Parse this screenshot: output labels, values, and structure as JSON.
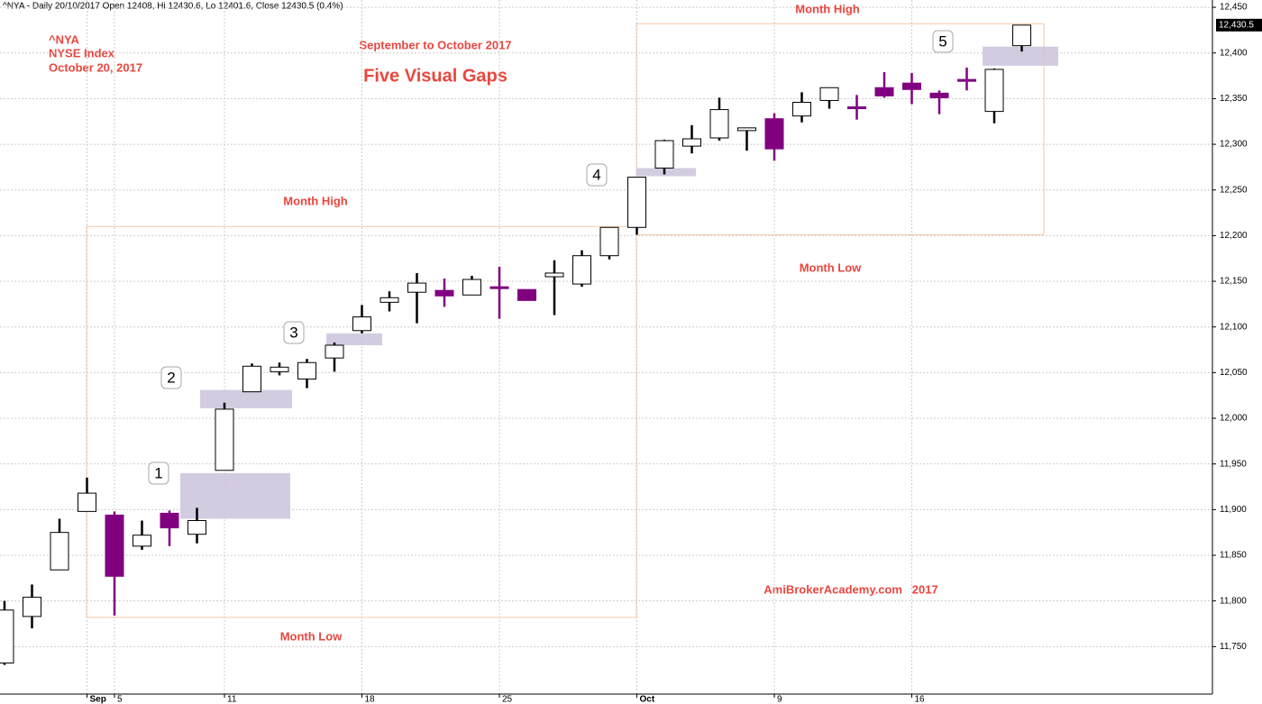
{
  "chart_data": {
    "type": "candlestick",
    "header": "^NYA - Daily 20/10/2017 Open 12408, Hi 12430.6, Lo 12401.6, Close 12430.5 (0.4%)",
    "symbol": "^NYA",
    "index_name": "NYSE Index",
    "date": "October 20, 2017",
    "subtitle": "September to October 2017",
    "title": "Five Visual Gaps",
    "watermark": "AmiBrokerAcademy.com   2017",
    "last_value_label": "12,430.5",
    "categories": [
      null,
      null,
      null,
      "Sep",
      "5",
      null,
      null,
      null,
      "11",
      null,
      null,
      null,
      null,
      "18",
      null,
      null,
      null,
      null,
      "25",
      null,
      null,
      null,
      null,
      "Oct",
      null,
      null,
      null,
      null,
      "9",
      null,
      null,
      null,
      null,
      "16",
      null,
      null,
      null,
      null
    ],
    "open": [
      11732,
      11783,
      11834,
      11898,
      11894,
      11860,
      11896,
      11873,
      11943,
      12029,
      12051,
      12043,
      12066,
      12096,
      12127,
      12138,
      12140,
      12135,
      12144,
      12141,
      12155,
      12147,
      12178,
      12209,
      12274,
      12298,
      12307,
      12315,
      12328,
      12331,
      12348,
      12341,
      12362,
      12367,
      12356,
      12371,
      12336,
      12408
    ],
    "high": [
      11800,
      11818,
      11890,
      11935,
      11898,
      11888,
      11899,
      11902,
      12017,
      12060,
      12061,
      12065,
      12083,
      12124,
      12139,
      12159,
      12153,
      12156,
      12166,
      12141,
      12173,
      12184,
      12209,
      12264,
      12305,
      12321,
      12351,
      12318,
      12334,
      12357,
      12362,
      12354,
      12379,
      12378,
      12359,
      12384,
      12383,
      12430.6
    ],
    "low": [
      11730,
      11770,
      11834,
      11898,
      11784,
      11856,
      11860,
      11863,
      11943,
      12029,
      12047,
      12033,
      12051,
      12093,
      12117,
      12104,
      12122,
      12135,
      12109,
      12129,
      12113,
      12144,
      12174,
      12201,
      12267,
      12290,
      12304,
      12293,
      12282,
      12324,
      12339,
      12327,
      12351,
      12344,
      12333,
      12359,
      12323,
      12401.6
    ],
    "close": [
      11790,
      11804,
      11875,
      11918,
      11827,
      11872,
      11880,
      11888,
      12010,
      12057,
      12056,
      12061,
      12080,
      12111,
      12132,
      12148,
      12134,
      12152,
      12142,
      12129,
      12159,
      12178,
      12209,
      12264,
      12304,
      12306,
      12338,
      12318,
      12295,
      12346,
      12362,
      12339,
      12353,
      12360,
      12351,
      12369,
      12382,
      12430.5
    ],
    "up_color": "#ffffff",
    "down_color": "#800080",
    "gap_color": "#cbc3dc",
    "box_color": "#f2c9a6",
    "gaps": [
      {
        "label": "1",
        "high": 11940,
        "low": 11890
      },
      {
        "label": "2",
        "high": 12031,
        "low": 12011
      },
      {
        "label": "3",
        "high": 12093,
        "low": 12080
      },
      {
        "label": "4",
        "high": 12274,
        "low": 12265
      },
      {
        "label": "5",
        "high": 12407,
        "low": 12386
      }
    ],
    "months": [
      {
        "high": 12210,
        "low": 11782,
        "high_label": "Month High",
        "low_label": "Month Low"
      },
      {
        "high": 12432,
        "low": 12201,
        "high_label": "Month High",
        "low_label": "Month Low"
      }
    ],
    "ylim": [
      11698,
      12458
    ],
    "yticks": [
      {
        "value": 11750,
        "label": "11,750"
      },
      {
        "value": 11800,
        "label": "11,800"
      },
      {
        "value": 11850,
        "label": "11,850"
      },
      {
        "value": 11900,
        "label": "11,900"
      },
      {
        "value": 11950,
        "label": "11,950"
      },
      {
        "value": 12000,
        "label": "12,000"
      },
      {
        "value": 12050,
        "label": "12,050"
      },
      {
        "value": 12100,
        "label": "12,100"
      },
      {
        "value": 12150,
        "label": "12,150"
      },
      {
        "value": 12200,
        "label": "12,200"
      },
      {
        "value": 12250,
        "label": "12,250"
      },
      {
        "value": 12300,
        "label": "12,300"
      },
      {
        "value": 12350,
        "label": "12,350"
      },
      {
        "value": 12400,
        "label": "12,400"
      },
      {
        "value": 12450,
        "label": "12,450"
      }
    ],
    "grid": true
  }
}
